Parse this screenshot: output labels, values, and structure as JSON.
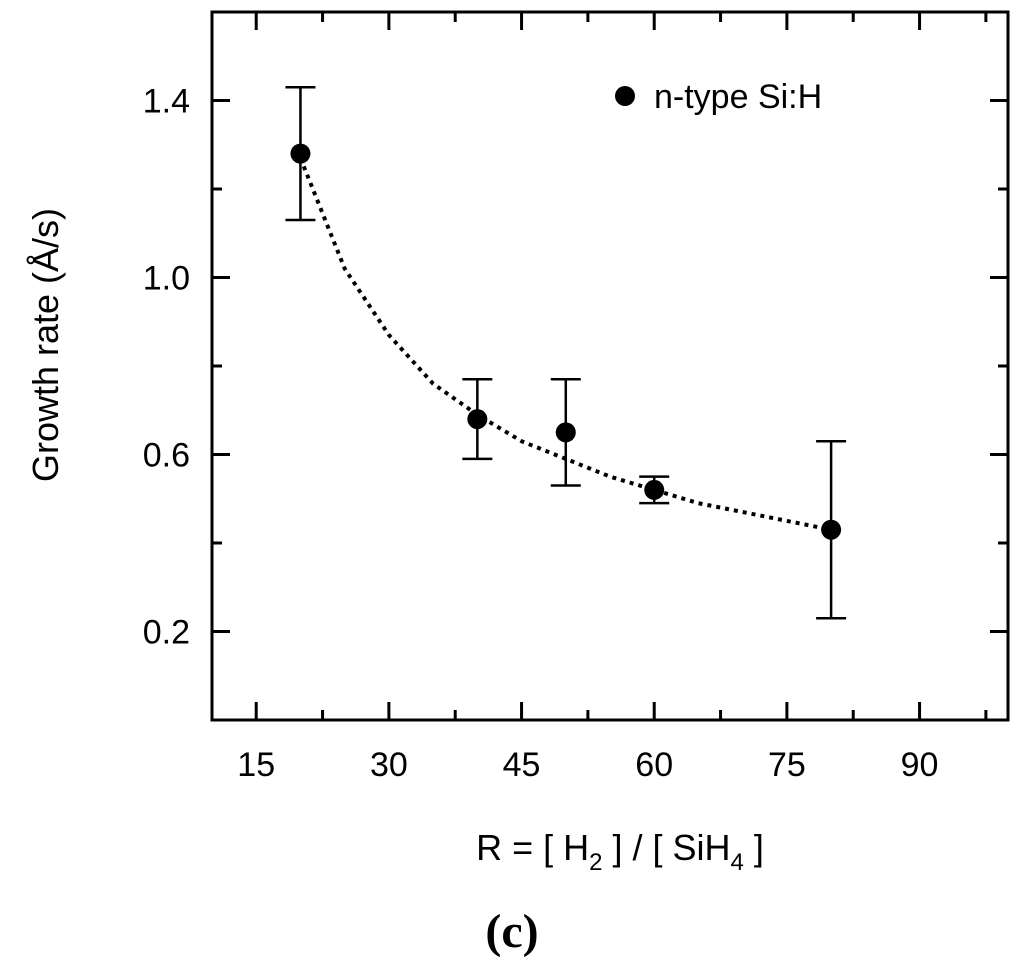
{
  "chart_data": {
    "type": "scatter",
    "title": "",
    "xlabel": {
      "prefix": "R = [ H",
      "sub1": "2",
      "middle": " ] / [ SiH",
      "sub2": "4",
      "suffix": " ]"
    },
    "ylabel": "Growth rate (Å/s)",
    "xlim": [
      10,
      100
    ],
    "ylim": [
      0,
      1.6
    ],
    "xticks": [
      15,
      30,
      45,
      60,
      75,
      90
    ],
    "xtick_labels": [
      "15",
      "30",
      "45",
      "60",
      "75",
      "90"
    ],
    "yticks": [
      0.2,
      0.6,
      1.0,
      1.4
    ],
    "ytick_labels": [
      "0.2",
      "0.6",
      "1.0",
      "1.4"
    ],
    "grid": false,
    "legend_position": "top-right",
    "series": [
      {
        "name": "n-type Si:H",
        "marker": "filled-circle",
        "color": "#000000",
        "x": [
          20,
          40,
          50,
          60,
          80
        ],
        "y": [
          1.28,
          0.68,
          0.65,
          0.52,
          0.43
        ],
        "y_err_low": [
          1.13,
          0.59,
          0.53,
          0.49,
          0.23
        ],
        "y_err_high": [
          1.43,
          0.77,
          0.77,
          0.55,
          0.63
        ]
      }
    ],
    "fit": {
      "style": "dotted",
      "color": "#000000",
      "x": [
        20,
        25,
        30,
        35,
        40,
        45,
        50,
        55,
        60,
        65,
        70,
        75,
        80
      ],
      "y": [
        1.27,
        1.02,
        0.87,
        0.76,
        0.69,
        0.63,
        0.59,
        0.55,
        0.52,
        0.49,
        0.47,
        0.45,
        0.43
      ]
    },
    "panel_label": "(c)"
  }
}
